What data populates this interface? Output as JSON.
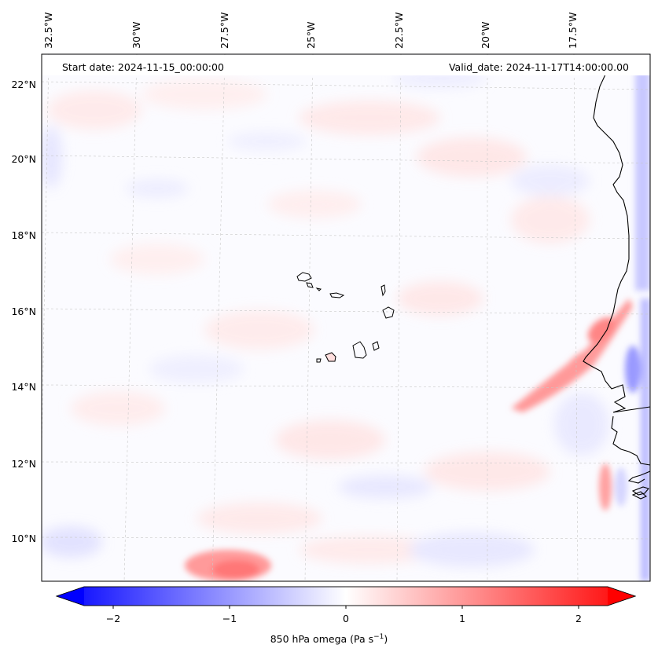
{
  "header": {
    "start_date": "Start date: 2024-11-15_00:00:00",
    "valid_date": "Valid_date: 2024-11-17T14:00:00.00"
  },
  "axes": {
    "lon_labels": [
      "32.5°W",
      "30°W",
      "27.5°W",
      "25°W",
      "22.5°W",
      "20°W",
      "17.5°W"
    ],
    "lat_labels": [
      "22°N",
      "20°N",
      "18°N",
      "16°N",
      "14°N",
      "12°N",
      "10°N"
    ],
    "gridlines": "dashed"
  },
  "colorbar": {
    "label_main": "850 hPa omega (Pa s",
    "label_exp": "−1",
    "label_end": ")",
    "ticks": [
      "−2",
      "−1",
      "0",
      "1",
      "2"
    ],
    "tick_values": [
      -2,
      -1,
      0,
      1,
      2
    ],
    "range": [
      -2.6,
      2.6
    ],
    "extend": "both",
    "colors": {
      "low": "#0000ff",
      "mid": "#ffffff",
      "high": "#ff0000"
    }
  },
  "map": {
    "region": "Eastern tropical Atlantic, Cape Verde Islands and West African coast",
    "coastline_color": "#000000"
  }
}
